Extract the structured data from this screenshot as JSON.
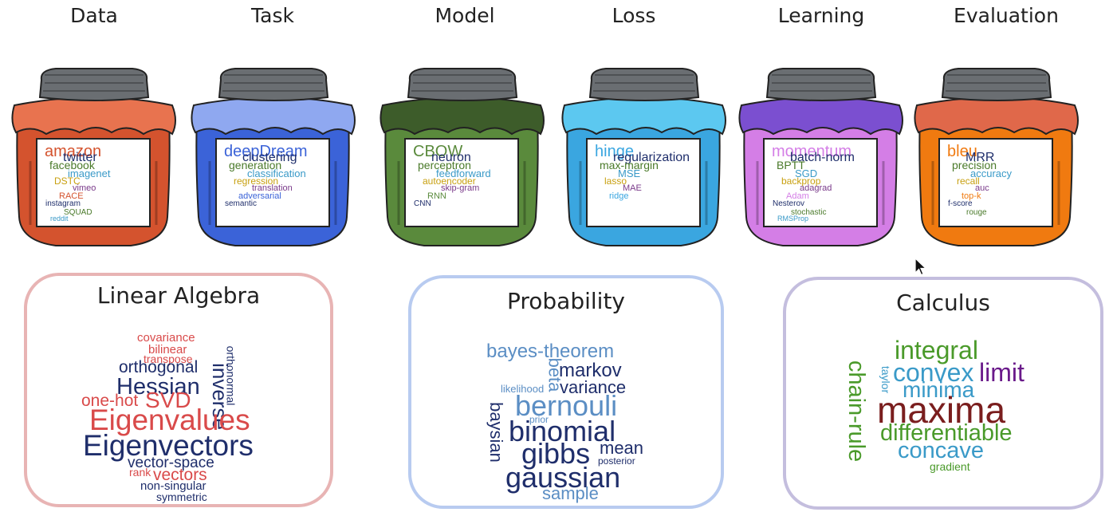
{
  "jars": [
    {
      "title": "Data",
      "cloth": "#e8734f",
      "body": "#d4532e",
      "words": [
        "amazon",
        "twitter",
        "facebook",
        "imagenet",
        "DSTC",
        "vimeo",
        "RACE",
        "instagram",
        "SQUAD",
        "reddit"
      ]
    },
    {
      "title": "Task",
      "cloth": "#8fa8f0",
      "body": "#3b63d8",
      "words": [
        "deepDream",
        "clustering",
        "generation",
        "classification",
        "regression",
        "translation",
        "adversarial",
        "semantic"
      ]
    },
    {
      "title": "Model",
      "cloth": "#3d5c2a",
      "body": "#5a8a3c",
      "words": [
        "CBOW",
        "neuron",
        "perceptron",
        "feedforward",
        "autoencoder",
        "skip-gram",
        "RNN",
        "CNN"
      ]
    },
    {
      "title": "Loss",
      "cloth": "#5cc8f0",
      "body": "#3aa6e0",
      "words": [
        "hinge",
        "regularization",
        "max-margin",
        "MSE",
        "lasso",
        "MAE",
        "ridge"
      ]
    },
    {
      "title": "Learning",
      "cloth": "#7b4fd0",
      "body": "#d47ee6",
      "words": [
        "momentum",
        "batch-norm",
        "BPTT",
        "SGD",
        "backprop",
        "adagrad",
        "Adam",
        "Nesterov",
        "stochastic",
        "RMSProp"
      ]
    },
    {
      "title": "Evaluation",
      "cloth": "#e0684a",
      "body": "#f07a10",
      "words": [
        "bleu",
        "MRR",
        "precision",
        "accuracy",
        "recall",
        "auc",
        "top-k",
        "f-score",
        "rouge"
      ]
    }
  ],
  "panels": [
    {
      "title": "Linear Algebra",
      "border": "#e8b4b4"
    },
    {
      "title": "Probability",
      "border": "#b8cbf0"
    },
    {
      "title": "Calculus",
      "border": "#c4bede"
    }
  ],
  "linear_algebra_words": {
    "covariance": "covariance",
    "bilinear": "bilinear",
    "transpose": "transpose",
    "orthogonal": "orthogonal",
    "hessian": "Hessian",
    "inverse": "inverse",
    "orthonormal": "orthonormal",
    "onehot": "one-hot",
    "svd": "SVD",
    "eigenvalues": "Eigenvalues",
    "eigenvectors": "Eigenvectors",
    "vectorspace": "vector-space",
    "rank": "rank",
    "vectors": "vectors",
    "nonsingular": "non-singular",
    "symmetric": "symmetric"
  },
  "probability_words": {
    "bayes": "bayes-theorem",
    "beta": "beta",
    "markov": "markov",
    "likelihood": "likelihood",
    "variance": "variance",
    "bernouli": "bernouli",
    "baysian": "baysian",
    "prior": "prior",
    "binomial": "binomial",
    "gibbs": "gibbs",
    "mean": "mean",
    "posterior": "posterior",
    "gaussian": "gaussian",
    "sample": "sample"
  },
  "calculus_words": {
    "chainrule": "chain-rule",
    "integral": "integral",
    "convex": "convex",
    "limit": "limit",
    "taylor": "taylor",
    "minima": "minima",
    "maxima": "maxima",
    "differentiable": "differentiable",
    "concave": "concave",
    "gradient": "gradient"
  }
}
